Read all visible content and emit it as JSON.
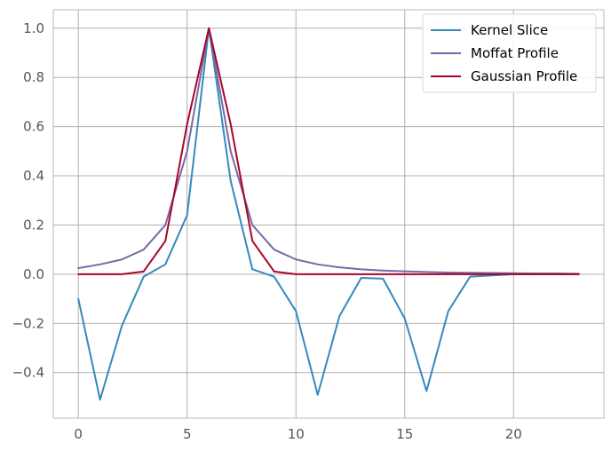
{
  "chart_data": {
    "type": "line",
    "title": "",
    "xlabel": "",
    "ylabel": "",
    "xlim": [
      -1.15,
      24.15
    ],
    "ylim": [
      -0.585,
      1.075
    ],
    "grid": true,
    "legend_position": "top-right",
    "x": [
      0,
      1,
      2,
      3,
      4,
      5,
      6,
      7,
      8,
      9,
      10,
      11,
      12,
      13,
      14,
      15,
      16,
      17,
      18,
      19,
      20,
      21,
      22,
      23
    ],
    "x_ticks": [
      0,
      5,
      10,
      15,
      20
    ],
    "x_tick_labels": [
      "0",
      "5",
      "10",
      "15",
      "20"
    ],
    "y_ticks": [
      -0.4,
      -0.2,
      0.0,
      0.2,
      0.4,
      0.6,
      0.8,
      1.0
    ],
    "y_tick_labels": [
      "−0.4",
      "−0.2",
      "0.0",
      "0.2",
      "0.4",
      "0.6",
      "0.8",
      "1.0"
    ],
    "series": [
      {
        "name": "Kernel Slice",
        "color": "#348ABD",
        "values": [
          -0.1,
          -0.51,
          -0.21,
          -0.01,
          0.04,
          0.24,
          1.0,
          0.38,
          0.02,
          -0.01,
          -0.15,
          -0.49,
          -0.17,
          -0.015,
          -0.018,
          -0.18,
          -0.475,
          -0.15,
          -0.01,
          -0.005,
          0.0,
          0.0,
          0.0,
          0.0
        ]
      },
      {
        "name": "Moffat Profile",
        "color": "#7A68A6",
        "values": [
          0.025,
          0.04,
          0.06,
          0.1,
          0.2,
          0.5,
          1.0,
          0.5,
          0.2,
          0.1,
          0.06,
          0.04,
          0.028,
          0.02,
          0.015,
          0.012,
          0.009,
          0.007,
          0.006,
          0.005,
          0.004,
          0.003,
          0.003,
          0.002
        ]
      },
      {
        "name": "Gaussian Profile",
        "color": "#A60628",
        "values": [
          0.0,
          0.0,
          0.0,
          0.011,
          0.135,
          0.61,
          1.0,
          0.61,
          0.135,
          0.011,
          0.0,
          0.0,
          0.0,
          0.0,
          0.0,
          0.0,
          0.0,
          0.0,
          0.0,
          0.0,
          0.0,
          0.0,
          0.0,
          0.0
        ]
      }
    ]
  }
}
